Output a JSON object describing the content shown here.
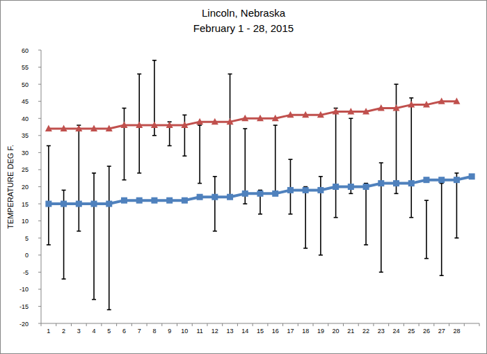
{
  "chart_data": {
    "type": "line",
    "title": "Lincoln, Nebraska",
    "subtitle": "February 1 - 28, 2015",
    "y_label": "TEMPERATURE DEG F.",
    "categories": [
      "1",
      "2",
      "3",
      "4",
      "5",
      "6",
      "7",
      "8",
      "9",
      "10",
      "11",
      "12",
      "13",
      "14",
      "15",
      "16",
      "17",
      "18",
      "19",
      "20",
      "21",
      "22",
      "23",
      "24",
      "25",
      "26",
      "27",
      "28",
      null
    ],
    "ylim": [
      -20,
      60
    ],
    "yticks": [
      -20,
      -15,
      -10,
      -5,
      0,
      5,
      10,
      15,
      20,
      25,
      30,
      35,
      40,
      45,
      50,
      55,
      60
    ],
    "grid": false,
    "series": [
      {
        "type": "line",
        "color": "#c0504d",
        "marker": "triangle",
        "values": [
          37,
          37,
          37,
          37,
          37,
          38,
          38,
          38,
          38,
          38,
          39,
          39,
          39,
          40,
          40,
          40,
          41,
          41,
          41,
          42,
          42,
          42,
          43,
          43,
          44,
          44,
          45,
          45,
          null
        ]
      },
      {
        "type": "line",
        "color": "#4f81bd",
        "marker": "square",
        "values": [
          15,
          15,
          15,
          15,
          15,
          16,
          16,
          16,
          16,
          16,
          17,
          17,
          17,
          18,
          18,
          18,
          19,
          19,
          19,
          20,
          20,
          20,
          21,
          21,
          21,
          22,
          22,
          22,
          23
        ]
      },
      {
        "type": "range",
        "color": "#000000",
        "low": [
          3,
          -7,
          7,
          -13,
          -16,
          22,
          24,
          35,
          32,
          29,
          21,
          7,
          17,
          15,
          12,
          18,
          12,
          2,
          0,
          11,
          18,
          3,
          -5,
          18,
          11,
          -1,
          -6,
          5,
          null
        ],
        "high": [
          32,
          19,
          38,
          24,
          26,
          43,
          53,
          57,
          39,
          41,
          38,
          23,
          53,
          37,
          19,
          38,
          28,
          20,
          23,
          43,
          40,
          21,
          27,
          50,
          46,
          16,
          21,
          24,
          null
        ]
      }
    ]
  }
}
